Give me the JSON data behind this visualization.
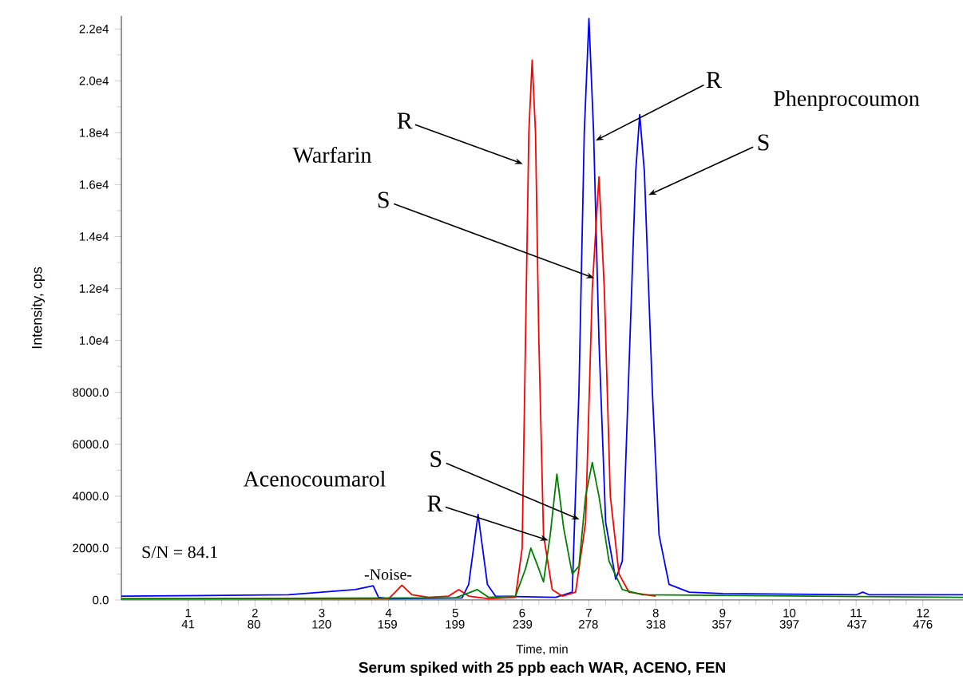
{
  "chart_data": {
    "type": "line",
    "title": "Serum spiked with 25 ppb each WAR, ACENO, FEN",
    "xlabel": "Time, min",
    "ylabel": "Intensity, cps",
    "xlim": [
      0,
      12.6
    ],
    "xticks": [
      1,
      2,
      3,
      4,
      5,
      6,
      7,
      8,
      9,
      10,
      11,
      12
    ],
    "x2lim": [
      1.5,
      499.8
    ],
    "x2ticks": [
      41,
      80,
      120,
      159,
      199,
      239,
      278,
      318,
      357,
      397,
      437,
      476
    ],
    "ylim": [
      0,
      22500
    ],
    "yticks": [
      {
        "value": 0,
        "label": "0.0"
      },
      {
        "value": 2000,
        "label": "2000.0"
      },
      {
        "value": 4000,
        "label": "4000.0"
      },
      {
        "value": 6000,
        "label": "6000.0"
      },
      {
        "value": 8000,
        "label": "8000.0"
      },
      {
        "value": 10000,
        "label": "1.0e4"
      },
      {
        "value": 12000,
        "label": "1.2e4"
      },
      {
        "value": 14000,
        "label": "1.4e4"
      },
      {
        "value": 16000,
        "label": "1.6e4"
      },
      {
        "value": 18000,
        "label": "1.8e4"
      },
      {
        "value": 20000,
        "label": "2.0e4"
      },
      {
        "value": 22000,
        "label": "2.2e4"
      }
    ],
    "series": [
      {
        "color": "#0000ff",
        "x": [
          0,
          2.5,
          3.0,
          3.5,
          3.77,
          3.85,
          4.0,
          5.1,
          5.2,
          5.34,
          5.48,
          5.6,
          6.5,
          6.75,
          6.85,
          6.93,
          7.0,
          7.07,
          7.15,
          7.25,
          7.4,
          7.5,
          7.6,
          7.7,
          7.76,
          7.83,
          7.95,
          8.05,
          8.2,
          8.5,
          9,
          11,
          11.1,
          11.2,
          12.6
        ],
        "values": [
          150,
          200,
          300,
          400,
          550,
          100,
          50,
          80,
          600,
          3300,
          600,
          150,
          100,
          300,
          8000,
          18000,
          22400,
          18000,
          10000,
          3000,
          800,
          1500,
          9000,
          16500,
          18700,
          16500,
          8000,
          2500,
          600,
          300,
          250,
          200,
          300,
          200,
          200
        ]
      },
      {
        "color": "#ff0000",
        "x": [
          0,
          4.0,
          4.1,
          4.2,
          4.35,
          4.6,
          4.9,
          5.05,
          5.2,
          5.5,
          5.9,
          6.0,
          6.05,
          6.1,
          6.15,
          6.2,
          6.25,
          6.32,
          6.45,
          6.6,
          6.8,
          6.95,
          7.05,
          7.15,
          7.23,
          7.32,
          7.45,
          7.6,
          8
        ],
        "values": [
          50,
          50,
          300,
          570,
          200,
          100,
          150,
          400,
          150,
          50,
          100,
          2000,
          10000,
          18000,
          20800,
          18000,
          10000,
          2500,
          400,
          150,
          300,
          3000,
          12000,
          16300,
          12000,
          4000,
          1000,
          300,
          150
        ]
      },
      {
        "color": "#008000",
        "x": [
          0,
          5.0,
          5.33,
          5.5,
          5.9,
          6.05,
          6.13,
          6.22,
          6.32,
          6.42,
          6.52,
          6.62,
          6.75,
          6.85,
          6.95,
          7.05,
          7.15,
          7.3,
          7.5,
          7.8,
          12.6
        ],
        "values": [
          50,
          80,
          400,
          100,
          150,
          1200,
          2000,
          1400,
          700,
          2500,
          4850,
          2800,
          1000,
          1300,
          4000,
          5300,
          4000,
          1500,
          400,
          200,
          100
        ]
      }
    ],
    "annotations": [
      "Warfarin",
      "Phenprocoumon",
      "Acenocoumarol",
      "S/N = 84.1",
      "-Noise-",
      {
        "text": "R",
        "x": 6.01,
        "y": 16800
      },
      {
        "text": "S",
        "x": 7.08,
        "y": 12400
      },
      {
        "text": "R",
        "x": 7.1,
        "y": 17700
      },
      {
        "text": "S",
        "x": 7.89,
        "y": 15600
      },
      {
        "text": "S",
        "x": 6.86,
        "y": 3100
      },
      {
        "text": "R",
        "x": 6.39,
        "y": 2300
      }
    ]
  }
}
